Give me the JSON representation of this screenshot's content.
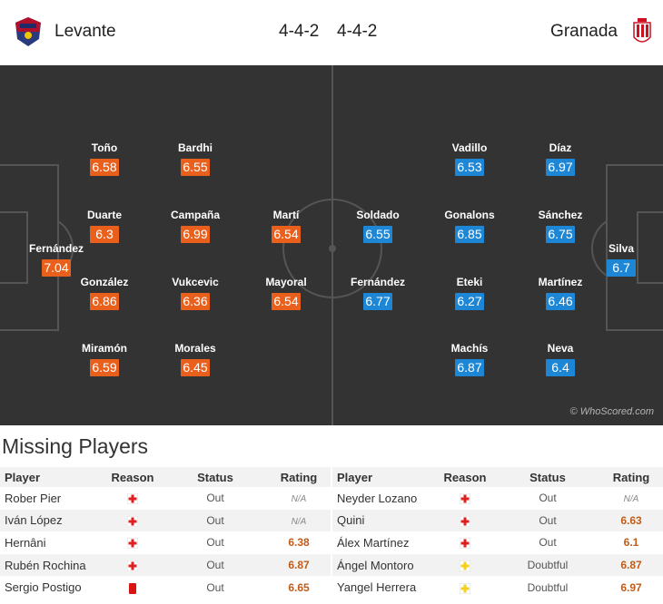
{
  "header": {
    "home_team": "Levante",
    "home_formation": "4-4-2",
    "away_formation": "4-4-2",
    "away_team": "Granada"
  },
  "colors": {
    "home_rating": "#e8601c",
    "away_rating": "#1d87d6",
    "pitch": "#333333"
  },
  "pitch": {
    "watermark": "© WhoScored.com",
    "home_players": [
      {
        "name": "Fernández",
        "rating": "7.04"
      },
      {
        "name": "Toño",
        "rating": "6.58"
      },
      {
        "name": "Duarte",
        "rating": "6.3"
      },
      {
        "name": "González",
        "rating": "6.86"
      },
      {
        "name": "Miramón",
        "rating": "6.59"
      },
      {
        "name": "Bardhi",
        "rating": "6.55"
      },
      {
        "name": "Campaña",
        "rating": "6.99"
      },
      {
        "name": "Vukcevic",
        "rating": "6.36"
      },
      {
        "name": "Morales",
        "rating": "6.45"
      },
      {
        "name": "Martí",
        "rating": "6.54"
      },
      {
        "name": "Mayoral",
        "rating": "6.54"
      }
    ],
    "away_players": [
      {
        "name": "Silva",
        "rating": "6.7"
      },
      {
        "name": "Díaz",
        "rating": "6.97"
      },
      {
        "name": "Sánchez",
        "rating": "6.75"
      },
      {
        "name": "Martínez",
        "rating": "6.46"
      },
      {
        "name": "Neva",
        "rating": "6.4"
      },
      {
        "name": "Vadillo",
        "rating": "6.53"
      },
      {
        "name": "Gonalons",
        "rating": "6.85"
      },
      {
        "name": "Eteki",
        "rating": "6.27"
      },
      {
        "name": "Machís",
        "rating": "6.87"
      },
      {
        "name": "Soldado",
        "rating": "6.55"
      },
      {
        "name": "Fernández",
        "rating": "6.77"
      }
    ]
  },
  "missing": {
    "title": "Missing Players",
    "headers": {
      "player": "Player",
      "reason": "Reason",
      "status": "Status",
      "rating": "Rating"
    },
    "home": [
      {
        "player": "Rober Pier",
        "reason": "injury-icon",
        "status": "Out",
        "rating": "N/A"
      },
      {
        "player": "Iván López",
        "reason": "injury-icon",
        "status": "Out",
        "rating": "N/A"
      },
      {
        "player": "Hernâni",
        "reason": "injury-icon",
        "status": "Out",
        "rating": "6.38"
      },
      {
        "player": "Rubén Rochina",
        "reason": "injury-icon",
        "status": "Out",
        "rating": "6.87"
      },
      {
        "player": "Sergio Postigo",
        "reason": "red-card-icon",
        "status": "Out",
        "rating": "6.65"
      }
    ],
    "away": [
      {
        "player": "Neyder Lozano",
        "reason": "injury-icon",
        "status": "Out",
        "rating": "N/A"
      },
      {
        "player": "Quini",
        "reason": "injury-icon",
        "status": "Out",
        "rating": "6.63"
      },
      {
        "player": "Álex Martínez",
        "reason": "injury-icon",
        "status": "Out",
        "rating": "6.1"
      },
      {
        "player": "Ángel Montoro",
        "reason": "doubtful-icon",
        "status": "Doubtful",
        "rating": "6.87"
      },
      {
        "player": "Yangel Herrera",
        "reason": "doubtful-icon",
        "status": "Doubtful",
        "rating": "6.97"
      }
    ]
  }
}
